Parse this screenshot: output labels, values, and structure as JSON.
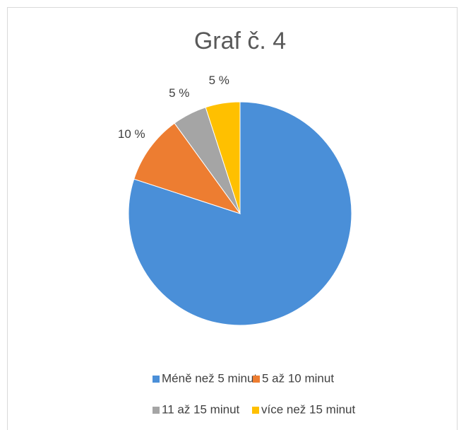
{
  "chart_data": {
    "type": "pie",
    "title": "Graf č. 4",
    "categories": [
      "Méně než 5 minut",
      "5 až 10 minut",
      "11 až 15 minut",
      "více než 15 minut"
    ],
    "values": [
      80,
      10,
      5,
      5
    ],
    "value_labels": [
      null,
      "10 %",
      "5 %",
      "5 %"
    ],
    "colors": [
      "#4a8fd8",
      "#ed7d31",
      "#a5a5a5",
      "#ffc000"
    ],
    "legend": "bottom"
  }
}
